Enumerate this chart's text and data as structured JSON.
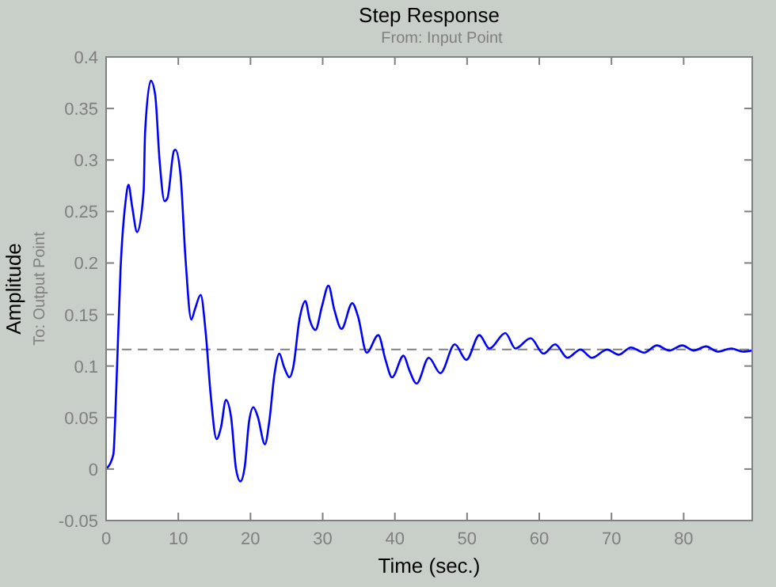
{
  "chart_data": {
    "type": "line",
    "title": "Step Response",
    "subtitle": "From: Input Point",
    "xlabel": "Time (sec.)",
    "ylabel": "Amplitude",
    "annotations": [
      "To: Output Point"
    ],
    "xlim": [
      0,
      89.5
    ],
    "xticks": [
      0,
      10,
      20,
      30,
      40,
      50,
      60,
      70,
      80
    ],
    "ylim": [
      -0.05,
      0.4
    ],
    "yticks": [
      -0.05,
      0,
      0.05,
      0.1,
      0.15,
      0.2,
      0.25,
      0.3,
      0.35,
      0.4
    ],
    "grid": false,
    "line_style": "solid",
    "marker": "none",
    "ref_lines": [
      {
        "axis": "y",
        "value": 0.116,
        "color": "#808080",
        "line_style": "dashed"
      }
    ],
    "series": [
      {
        "color": "#0000ff",
        "x": [
          0,
          1.0,
          1.4,
          2.0,
          2.7,
          3.1,
          3.6,
          4.3,
          5.2,
          5.4,
          6.2,
          6.8,
          7.4,
          8.1,
          8.5,
          9.4,
          9.6,
          10.3,
          11.0,
          11.8,
          12.3,
          13.1,
          13.8,
          14.5,
          15.3,
          15.9,
          16.6,
          17.3,
          18.0,
          18.6,
          19.2,
          19.8,
          20.4,
          21.0,
          22.0,
          22.6,
          23.3,
          24.0,
          24.6,
          25.4,
          25.9,
          26.8,
          27.6,
          28.2,
          29.0,
          29.9,
          30.8,
          31.6,
          32.6,
          34.1,
          34.9,
          36.1,
          37.7,
          38.7,
          39.6,
          41.2,
          42.0,
          43.0,
          44.7,
          46.3,
          48.3,
          49.9,
          51.7,
          53.1,
          55.3,
          56.7,
          58.8,
          60.6,
          62.2,
          63.9,
          65.7,
          67.3,
          69.4,
          71.0,
          72.7,
          74.5,
          76.3,
          78.0,
          79.8,
          81.4,
          83.1,
          84.7,
          86.6,
          88.2,
          89.5
        ],
        "values": [
          0,
          0.014,
          0.076,
          0.194,
          0.26,
          0.276,
          0.255,
          0.23,
          0.27,
          0.327,
          0.377,
          0.363,
          0.3,
          0.26,
          0.263,
          0.309,
          0.31,
          0.286,
          0.204,
          0.145,
          0.155,
          0.169,
          0.132,
          0.071,
          0.029,
          0.04,
          0.067,
          0.051,
          0,
          -0.012,
          0.002,
          0.046,
          0.06,
          0.051,
          0.024,
          0.046,
          0.091,
          0.112,
          0.1,
          0.089,
          0.098,
          0.146,
          0.163,
          0.145,
          0.135,
          0.158,
          0.178,
          0.155,
          0.136,
          0.161,
          0.148,
          0.113,
          0.13,
          0.106,
          0.089,
          0.11,
          0.096,
          0.083,
          0.108,
          0.093,
          0.121,
          0.106,
          0.13,
          0.117,
          0.132,
          0.117,
          0.127,
          0.112,
          0.121,
          0.108,
          0.116,
          0.108,
          0.116,
          0.111,
          0.118,
          0.113,
          0.12,
          0.115,
          0.12,
          0.115,
          0.119,
          0.114,
          0.117,
          0.114,
          0.115
        ]
      }
    ]
  }
}
